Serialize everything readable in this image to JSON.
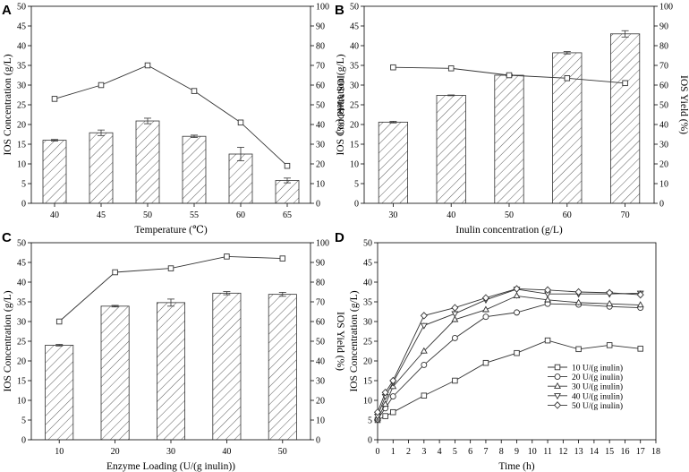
{
  "chart_data": [
    {
      "panel": "A",
      "type": "bar+line",
      "categories": [
        "40",
        "45",
        "50",
        "55",
        "60",
        "65"
      ],
      "xlabel": "Temperature (℃)",
      "ylabel": "IOS Concentration (g/L)",
      "y2label": "IOS Yield (%)",
      "ylim": [
        0,
        50
      ],
      "y2lim": [
        0,
        100
      ],
      "yticks": [
        "0",
        "5",
        "10",
        "15",
        "20",
        "25",
        "30",
        "35",
        "40",
        "45",
        "50"
      ],
      "y2ticks": [
        "0",
        "10",
        "20",
        "30",
        "40",
        "50",
        "60",
        "70",
        "80",
        "90",
        "100"
      ],
      "bars": [
        16.0,
        17.9,
        20.9,
        17.0,
        12.5,
        5.8
      ],
      "bar_errors": [
        0.2,
        0.7,
        0.7,
        0.3,
        1.7,
        0.6
      ],
      "line": [
        53,
        60,
        70,
        57,
        41,
        19
      ]
    },
    {
      "panel": "B",
      "type": "bar+line",
      "categories": [
        "30",
        "40",
        "50",
        "60",
        "70"
      ],
      "xlabel": "Inulin concentration (g/L)",
      "ylabel": "IOS Concentration (g/L)",
      "y2label": "IOS Yield (%)",
      "ylim": [
        0,
        50
      ],
      "y2lim": [
        0,
        100
      ],
      "yticks": [
        "0",
        "5",
        "10",
        "15",
        "20",
        "25",
        "30",
        "35",
        "40",
        "45",
        "50"
      ],
      "y2ticks": [
        "0",
        "10",
        "20",
        "30",
        "40",
        "50",
        "60",
        "70",
        "80",
        "90",
        "100"
      ],
      "bars": [
        20.6,
        27.4,
        32.5,
        38.2,
        43.0
      ],
      "bar_errors": [
        0.2,
        0.1,
        0.2,
        0.3,
        0.8
      ],
      "line": [
        69,
        68.5,
        65,
        63.5,
        61
      ]
    },
    {
      "panel": "C",
      "type": "bar+line",
      "categories": [
        "10",
        "20",
        "30",
        "40",
        "50"
      ],
      "xlabel": "Enzyme Loading (U/(g inulin))",
      "ylabel": "IOS Concentration (g/L)",
      "y2label": "IOS Yield (%)",
      "ylim": [
        0,
        50
      ],
      "y2lim": [
        0,
        100
      ],
      "yticks": [
        "0",
        "5",
        "10",
        "15",
        "20",
        "25",
        "30",
        "35",
        "40",
        "45",
        "50"
      ],
      "y2ticks": [
        "0",
        "10",
        "20",
        "30",
        "40",
        "50",
        "60",
        "70",
        "80",
        "90",
        "100"
      ],
      "bars": [
        24.0,
        33.9,
        34.8,
        37.2,
        36.9
      ],
      "bar_errors": [
        0.2,
        0.2,
        0.9,
        0.4,
        0.5
      ],
      "line": [
        60,
        85,
        87,
        93,
        92
      ]
    },
    {
      "panel": "D",
      "type": "line",
      "xlabel": "Time (h)",
      "ylabel": "IOS Concentration (g/L)",
      "xlim": [
        0,
        18
      ],
      "ylim": [
        0,
        50
      ],
      "xticks": [
        "0",
        "1",
        "2",
        "3",
        "4",
        "5",
        "6",
        "7",
        "8",
        "9",
        "10",
        "11",
        "12",
        "13",
        "14",
        "15",
        "16",
        "17",
        "18"
      ],
      "yticks": [
        "0",
        "5",
        "10",
        "15",
        "20",
        "25",
        "30",
        "35",
        "40",
        "45",
        "50"
      ],
      "x": [
        0,
        0.5,
        1,
        3,
        5,
        7,
        9,
        11,
        13,
        15,
        17
      ],
      "series": [
        {
          "name": "10 U/(g inulin)",
          "marker": "square",
          "values": [
            5.0,
            6.0,
            7.0,
            11.2,
            15.0,
            19.5,
            22.0,
            25.2,
            23.0,
            24.0,
            23.1
          ]
        },
        {
          "name": "20 U/(g inulin)",
          "marker": "circle",
          "values": [
            5.2,
            8.0,
            11.0,
            19.0,
            25.8,
            31.2,
            32.3,
            34.5,
            34.3,
            33.8,
            33.5
          ]
        },
        {
          "name": "30 U/(g inulin)",
          "marker": "triangle",
          "values": [
            5.5,
            9.0,
            13.5,
            22.5,
            30.5,
            33.0,
            36.5,
            35.5,
            34.8,
            34.5,
            34.2
          ]
        },
        {
          "name": "40 U/(g inulin)",
          "marker": "tri-down",
          "values": [
            6.0,
            11.0,
            14.5,
            29.0,
            32.0,
            35.5,
            38.2,
            37.0,
            37.0,
            37.0,
            37.2
          ]
        },
        {
          "name": "50 U/(g inulin)",
          "marker": "diamond",
          "values": [
            7.0,
            12.0,
            15.0,
            31.5,
            33.5,
            36.0,
            38.3,
            38.0,
            37.5,
            37.3,
            36.8
          ]
        }
      ]
    }
  ]
}
